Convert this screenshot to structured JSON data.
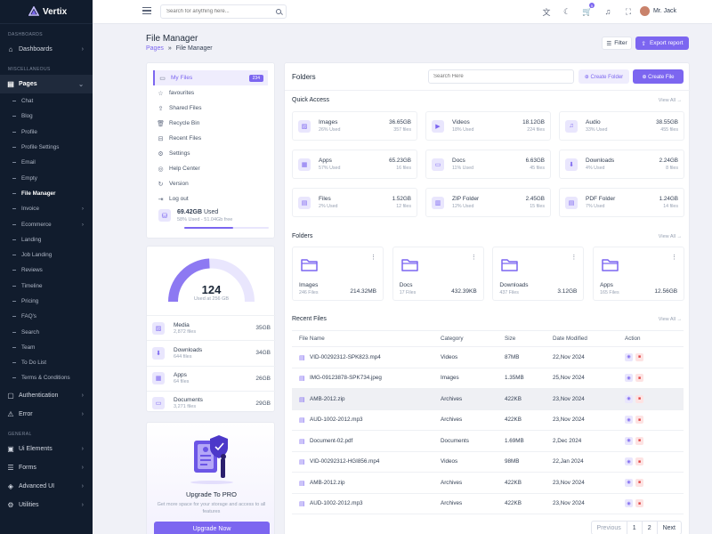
{
  "app": {
    "name": "Vertix"
  },
  "sidebar": {
    "cat_dashboards": "DASHBOARDS",
    "dashboards": "Dashboards",
    "cat_misc": "MISCELLANEOUS",
    "pages": "Pages",
    "subitems": [
      "Chat",
      "Blog",
      "Profile",
      "Profile Settings",
      "Email",
      "Empty",
      "File Manager",
      "Invoice",
      "Ecommerce",
      "Landing",
      "Job Landing",
      "Reviews",
      "Timeline",
      "Pricing",
      "FAQ's",
      "Search",
      "Team",
      "To Do List",
      "Terms & Conditions"
    ],
    "authentication": "Authentication",
    "error": "Error",
    "cat_general": "GENERAL",
    "ui_elements": "Ui Elements",
    "forms": "Forms",
    "advanced_ui": "Advanced UI",
    "utilities": "Utilities"
  },
  "header": {
    "search_placeholder": "Search for anything here...",
    "cart_badge": "5",
    "user_name": "Mr. Jack"
  },
  "page": {
    "title": "File Manager",
    "crumb_root": "Pages",
    "crumb_sep": "»",
    "crumb_current": "File Manager",
    "filter_label": "Filter",
    "export_label": "Export report"
  },
  "nav": {
    "items": [
      "My Files",
      "favourites",
      "Shared Files",
      "Recycle Bin",
      "Recent Files",
      "Settings",
      "Help Center",
      "Version",
      "Log out"
    ],
    "my_files_count": "234",
    "storage_used": "69.42GB",
    "storage_used_suffix": "Used",
    "storage_detail": "58% Used - 51.04Gb free",
    "storage_percent": 58
  },
  "gauge": {
    "value": "124",
    "caption": "Used at 256 GB",
    "fraction": 0.484,
    "rows": [
      {
        "name": "Media",
        "files": "2,872 files",
        "size": "35GB"
      },
      {
        "name": "Downloads",
        "files": "644 files",
        "size": "34GB"
      },
      {
        "name": "Apps",
        "files": "64 files",
        "size": "26GB"
      },
      {
        "name": "Documents",
        "files": "3,271 files",
        "size": "29GB"
      }
    ]
  },
  "upgrade": {
    "title": "Upgrade To PRO",
    "desc": "Get more space for your storage and access to all features",
    "button": "Upgrade Now"
  },
  "main": {
    "title": "Folders",
    "search_placeholder": "Search Here",
    "create_folder": "Create Folder",
    "create_file": "Create File",
    "quick_access_title": "Quick Access",
    "view_all": "View All",
    "quick_access": [
      {
        "name": "Images",
        "used": "26% Used",
        "size": "36.65GB",
        "files": "357 files"
      },
      {
        "name": "Videos",
        "used": "18% Used",
        "size": "18.12GB",
        "files": "224 files"
      },
      {
        "name": "Audio",
        "used": "33% Used",
        "size": "38.55GB",
        "files": "455 files"
      },
      {
        "name": "Apps",
        "used": "57% Used",
        "size": "65.23GB",
        "files": "16 files"
      },
      {
        "name": "Docs",
        "used": "11% Used",
        "size": "6.63GB",
        "files": "45 files"
      },
      {
        "name": "Downloads",
        "used": "4% Used",
        "size": "2.24GB",
        "files": "8 files"
      },
      {
        "name": "Files",
        "used": "2% Used",
        "size": "1.52GB",
        "files": "12 files"
      },
      {
        "name": "ZIP Folder",
        "used": "12% Used",
        "size": "2.45GB",
        "files": "15 files"
      },
      {
        "name": "PDF Folder",
        "used": "7% Used",
        "size": "1.24GB",
        "files": "14 files"
      }
    ],
    "folders_title": "Folders",
    "folders": [
      {
        "name": "Images",
        "files": "246 Files",
        "size": "214.32MB"
      },
      {
        "name": "Docs",
        "files": "17 Files",
        "size": "432.39KB"
      },
      {
        "name": "Downloads",
        "files": "437 Files",
        "size": "3.12GB"
      },
      {
        "name": "Apps",
        "files": "165 Files",
        "size": "12.56GB"
      }
    ],
    "recent_title": "Recent Files",
    "table_headers": [
      "File Name",
      "Category",
      "Size",
      "Date Modified",
      "Action"
    ],
    "recent": [
      {
        "name": "VID-00292312-SPK823.mp4",
        "category": "Videos",
        "size": "87MB",
        "date": "22,Nov 2024"
      },
      {
        "name": "IMG-09123878-SPK734.jpeg",
        "category": "Images",
        "size": "1.35MB",
        "date": "25,Nov 2024"
      },
      {
        "name": "AMB-2012.zip",
        "category": "Archives",
        "size": "422KB",
        "date": "23,Nov 2024"
      },
      {
        "name": "AUD-1002-2012.mp3",
        "category": "Archives",
        "size": "422KB",
        "date": "23,Nov 2024"
      },
      {
        "name": "Document-02.pdf",
        "category": "Documents",
        "size": "1.69MB",
        "date": "2,Dec 2024"
      },
      {
        "name": "VID-00292312-HGI856.mp4",
        "category": "Videos",
        "size": "98MB",
        "date": "22,Jan 2024"
      },
      {
        "name": "AMB-2012.zip",
        "category": "Archives",
        "size": "422KB",
        "date": "23,Nov 2024"
      },
      {
        "name": "AUD-1002-2012.mp3",
        "category": "Archives",
        "size": "422KB",
        "date": "23,Nov 2024"
      }
    ],
    "pagination": {
      "previous": "Previous",
      "p1": "1",
      "p2": "2",
      "next": "Next"
    }
  }
}
